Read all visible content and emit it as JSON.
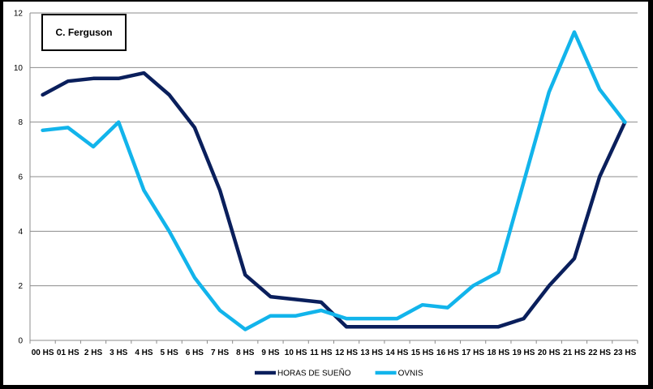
{
  "chart_data": {
    "type": "line",
    "annotation": "C. Ferguson",
    "categories": [
      "00 HS",
      "01 HS",
      "2 HS",
      "3 HS",
      "4 HS",
      "5 HS",
      "6 HS",
      "7 HS",
      "8 HS",
      "9 HS",
      "10 HS",
      "11 HS",
      "12 HS",
      "13 HS",
      "14 HS",
      "15 HS",
      "16 HS",
      "17 HS",
      "18 HS",
      "19 HS",
      "20 HS",
      "21 HS",
      "22 HS",
      "23 HS"
    ],
    "series": [
      {
        "name": "HORAS DE SUEÑO",
        "color": "#0a1f5c",
        "values": [
          9.0,
          9.5,
          9.6,
          9.6,
          9.8,
          9.0,
          7.8,
          5.5,
          2.4,
          1.6,
          1.5,
          1.4,
          0.5,
          0.5,
          0.5,
          0.5,
          0.5,
          0.5,
          0.5,
          0.8,
          2.0,
          3.0,
          6.0,
          8.0
        ]
      },
      {
        "name": "OVNIS",
        "color": "#12b4eb",
        "values": [
          7.7,
          7.8,
          7.1,
          8.0,
          5.5,
          4.0,
          2.3,
          1.1,
          0.4,
          0.9,
          0.9,
          1.1,
          0.8,
          0.8,
          0.8,
          1.3,
          1.2,
          2.0,
          2.5,
          5.8,
          9.1,
          11.3,
          9.2,
          8.0
        ]
      }
    ],
    "yticks": [
      0,
      2,
      4,
      6,
      8,
      10,
      12
    ],
    "ylim": [
      0,
      12
    ],
    "grid": true,
    "legend_position": "bottom"
  }
}
